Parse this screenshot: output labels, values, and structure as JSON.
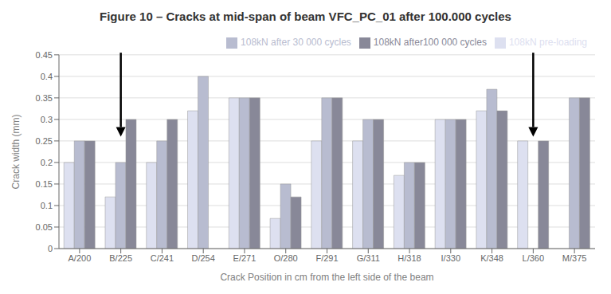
{
  "chart_data": {
    "type": "bar",
    "title": "Figure 10 – Cracks at mid-span of beam VFC_PC_01 after 100.000 cycles",
    "categories": [
      "A/200",
      "B/225",
      "C/241",
      "D/254",
      "E/271",
      "O/280",
      "F/291",
      "G/311",
      "H/318",
      "I/330",
      "K/348",
      "L/360",
      "M/375"
    ],
    "series": [
      {
        "name": "108kN pre-loading",
        "color": "#dde0f0",
        "values": [
          0.2,
          0.12,
          0.2,
          0.32,
          0.35,
          0.07,
          0.25,
          0.25,
          0.17,
          0.3,
          0.32,
          0.25,
          0.0
        ]
      },
      {
        "name": "108kN after 30 000 cycles",
        "color": "#b8bcd0",
        "values": [
          0.25,
          0.2,
          0.25,
          0.4,
          0.35,
          0.15,
          0.35,
          0.3,
          0.2,
          0.3,
          0.37,
          0.0,
          0.35
        ]
      },
      {
        "name": "108kN after100 000 cycles",
        "color": "#888898",
        "values": [
          0.25,
          0.3,
          0.3,
          0.0,
          0.35,
          0.12,
          0.35,
          0.3,
          0.2,
          0.3,
          0.32,
          0.25,
          0.35
        ]
      }
    ],
    "xlabel": "Crack Position in cm from the left side of the beam",
    "ylabel": "Crack width (mm)",
    "ylim": [
      0,
      0.45
    ],
    "yticks": [
      0,
      0.05,
      0.1,
      0.15,
      0.2,
      0.25,
      0.3,
      0.35,
      0.4,
      0.45
    ],
    "grid": true,
    "legend": "upper right",
    "annotations": [
      {
        "type": "arrow",
        "x": "B/225",
        "y_from": 0.455,
        "y_to": 0.26
      },
      {
        "type": "arrow",
        "x": "L/360",
        "y_from": 0.455,
        "y_to": 0.26
      }
    ]
  }
}
